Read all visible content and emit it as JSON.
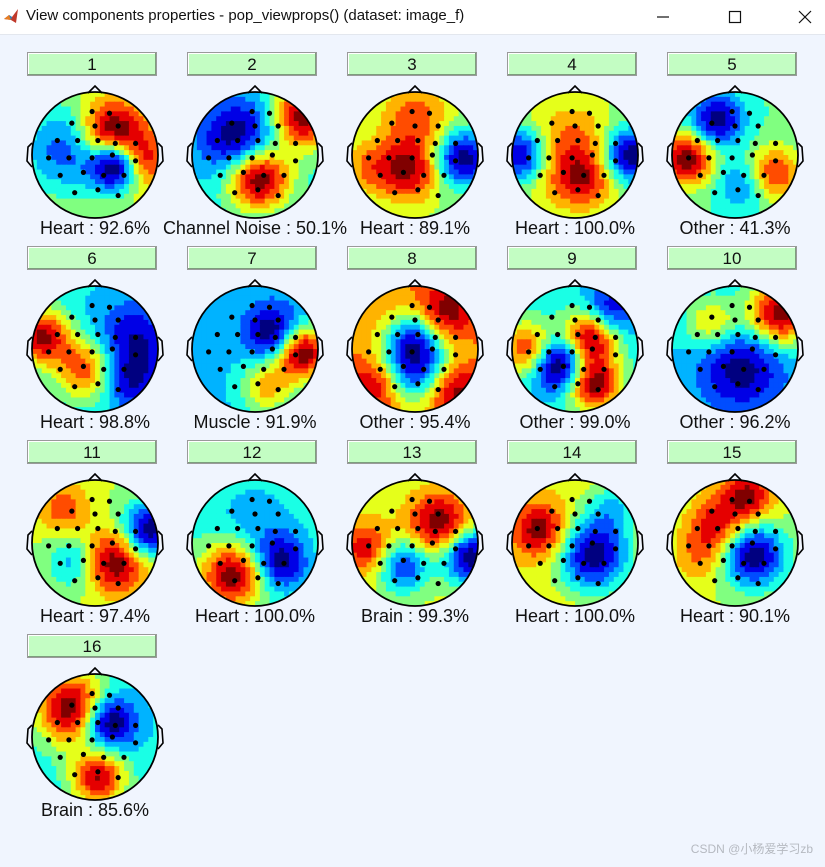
{
  "window": {
    "title": "View components properties - pop_viewprops() (dataset: image_f)",
    "icon": "matlab-logo-icon",
    "controls": [
      "minimize-icon",
      "maximize-icon",
      "close-icon"
    ]
  },
  "components": [
    {
      "number": "1",
      "label": "Heart : 92.6%"
    },
    {
      "number": "2",
      "label": "Channel Noise : 50.1%"
    },
    {
      "number": "3",
      "label": "Heart : 89.1%"
    },
    {
      "number": "4",
      "label": "Heart : 100.0%"
    },
    {
      "number": "5",
      "label": "Other : 41.3%"
    },
    {
      "number": "6",
      "label": "Heart : 98.8%"
    },
    {
      "number": "7",
      "label": "Muscle : 91.9%"
    },
    {
      "number": "8",
      "label": "Other : 95.4%"
    },
    {
      "number": "9",
      "label": "Other : 99.0%"
    },
    {
      "number": "10",
      "label": "Other : 96.2%"
    },
    {
      "number": "11",
      "label": "Heart : 97.4%"
    },
    {
      "number": "12",
      "label": "Heart : 100.0%"
    },
    {
      "number": "13",
      "label": "Brain : 99.3%"
    },
    {
      "number": "14",
      "label": "Heart : 100.0%"
    },
    {
      "number": "15",
      "label": "Heart : 90.1%"
    },
    {
      "number": "16",
      "label": "Brain : 85.6%"
    }
  ],
  "colors": {
    "button_bg": "#c3fdc3",
    "background": "#f0f5fe",
    "jet_low": "#00008f",
    "jet_high": "#800000"
  },
  "watermark": "CSDN @小杨爱学习zb"
}
